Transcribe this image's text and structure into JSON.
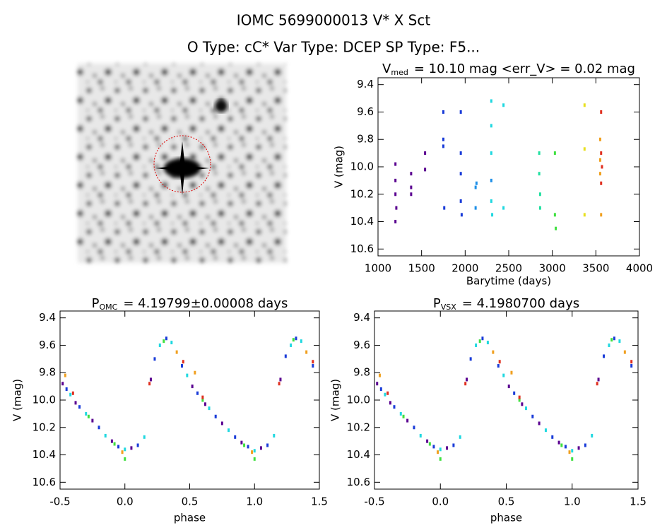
{
  "title": "IOMC 5699000013    V* X Sct",
  "subtitle": "O Type: cC*  Var Type: DCEP  SP Type: F5...",
  "chart_data": [
    {
      "type": "scatter",
      "title": {
        "main": "V",
        "sub": "med",
        "rest": "= 10.10 mag <err_V> = 0.02 mag"
      },
      "xlabel": "Barytime (days)",
      "ylabel": "V (mag)",
      "xlim": [
        1000,
        4000
      ],
      "ylim": [
        10.65,
        9.35
      ],
      "xticks": [
        1000,
        1500,
        2000,
        2500,
        3000,
        3500,
        4000
      ],
      "yticks": [
        9.4,
        9.6,
        9.8,
        {
          "value": 10,
          "label": "10.0"
        },
        10.2,
        10.4,
        10.6
      ],
      "series": [
        {
          "color": "#5a0090",
          "x": [
            1200,
            1200,
            1200,
            1210,
            1200,
            1380,
            1380,
            1380,
            1540,
            1540
          ],
          "values": [
            9.98,
            10.1,
            10.2,
            10.3,
            10.4,
            10.05,
            10.15,
            10.2,
            9.9,
            10.02
          ]
        },
        {
          "color": "#1a3cd8",
          "x": [
            1750,
            1750,
            1750,
            1760,
            1950,
            1950,
            1950,
            1950,
            1960
          ],
          "values": [
            9.6,
            9.8,
            9.85,
            10.3,
            9.6,
            9.9,
            10.05,
            10.25,
            10.35
          ]
        },
        {
          "color": "#1e90e8",
          "x": [
            2120,
            2120,
            2130,
            2300
          ],
          "values": [
            10.15,
            10.3,
            10.12,
            10.1
          ]
        },
        {
          "color": "#20d8e0",
          "x": [
            2300,
            2300,
            2300,
            2300,
            2310,
            2440,
            2440
          ],
          "values": [
            9.52,
            9.7,
            9.9,
            10.25,
            10.35,
            9.55,
            10.3
          ]
        },
        {
          "color": "#20e0a0",
          "x": [
            2850,
            2850,
            2860,
            2860
          ],
          "values": [
            9.9,
            10.05,
            10.2,
            10.3
          ]
        },
        {
          "color": "#40e040",
          "x": [
            3030,
            3030,
            3040
          ],
          "values": [
            9.9,
            10.35,
            10.45
          ]
        },
        {
          "color": "#e8e020",
          "x": [
            3370,
            3370,
            3370
          ],
          "values": [
            9.55,
            9.87,
            10.35
          ]
        },
        {
          "color": "#f0a020",
          "x": [
            3550,
            3550,
            3560,
            3550
          ],
          "values": [
            9.8,
            10.05,
            10.35,
            9.95
          ]
        },
        {
          "color": "#e03020",
          "x": [
            3560,
            3560,
            3560,
            3570
          ],
          "values": [
            9.6,
            9.9,
            10.12,
            10.0
          ]
        }
      ]
    },
    {
      "type": "scatter",
      "title": {
        "main": "P",
        "sub": "OMC",
        "rest": "= 4.19799±0.00008 days"
      },
      "xlabel": "phase",
      "ylabel": "V (mag)",
      "xlim": [
        -0.5,
        1.5
      ],
      "ylim": [
        10.65,
        9.35
      ],
      "xticks": [
        -0.5,
        {
          "value": 0,
          "label": "0.0"
        },
        0.5,
        {
          "value": 1,
          "label": "1.0"
        },
        1.5
      ],
      "yticks": [
        9.4,
        9.6,
        9.8,
        {
          "value": 10,
          "label": "10.0"
        },
        10.2,
        10.4,
        10.6
      ],
      "series": [
        {
          "color": "#5a0090",
          "x": [
            -0.48,
            -0.38,
            -0.25,
            -0.1,
            0.05,
            0.2,
            0.52,
            0.62,
            0.75,
            0.9,
            1.05,
            1.2
          ],
          "values": [
            9.88,
            10.02,
            10.15,
            10.3,
            10.35,
            9.85,
            9.9,
            10.03,
            10.17,
            10.31,
            10.35,
            9.85
          ]
        },
        {
          "color": "#1a3cd8",
          "x": [
            -0.45,
            -0.35,
            -0.2,
            -0.05,
            0.1,
            0.23,
            0.32,
            0.44,
            0.56,
            0.7,
            0.85,
            0.95,
            1.1,
            1.24,
            1.32,
            1.45
          ],
          "values": [
            9.92,
            10.05,
            10.2,
            10.34,
            10.33,
            9.7,
            9.55,
            9.75,
            9.95,
            10.12,
            10.27,
            10.34,
            10.33,
            9.68,
            9.55,
            9.75
          ]
        },
        {
          "color": "#20d8e0",
          "x": [
            -0.42,
            -0.3,
            -0.15,
            0.0,
            0.15,
            0.27,
            0.36,
            0.48,
            0.65,
            0.8,
            1.0,
            1.15,
            1.28,
            1.36
          ],
          "values": [
            9.96,
            10.1,
            10.26,
            10.36,
            10.27,
            9.6,
            9.58,
            9.82,
            10.06,
            10.22,
            10.37,
            10.26,
            9.6,
            9.57
          ]
        },
        {
          "color": "#40e040",
          "x": [
            -0.28,
            -0.08,
            0.0,
            0.3,
            0.6,
            0.92,
            1.0,
            1.3
          ],
          "values": [
            10.12,
            10.32,
            10.43,
            9.57,
            10.0,
            10.33,
            10.43,
            9.56
          ]
        },
        {
          "color": "#f0a020",
          "x": [
            -0.46,
            -0.02,
            0.4,
            0.54,
            0.98,
            1.4
          ],
          "values": [
            9.82,
            10.38,
            9.65,
            9.8,
            10.38,
            9.65
          ]
        },
        {
          "color": "#e03020",
          "x": [
            -0.4,
            0.19,
            0.45,
            0.6,
            1.19,
            1.45
          ],
          "values": [
            9.95,
            9.88,
            9.72,
            9.98,
            9.88,
            9.72
          ]
        }
      ]
    },
    {
      "type": "scatter",
      "title": {
        "main": "P",
        "sub": "VSX",
        "rest": "= 4.1980700 days"
      },
      "xlabel": "phase",
      "ylabel": "V (mag)",
      "xlim": [
        -0.5,
        1.5
      ],
      "ylim": [
        10.65,
        9.35
      ],
      "xticks": [
        -0.5,
        {
          "value": 0,
          "label": "0.0"
        },
        0.5,
        {
          "value": 1,
          "label": "1.0"
        },
        1.5
      ],
      "yticks": [
        9.4,
        9.6,
        9.8,
        {
          "value": 10,
          "label": "10.0"
        },
        10.2,
        10.4,
        10.6
      ],
      "series": [
        {
          "color": "#5a0090",
          "x": [
            -0.48,
            -0.38,
            -0.25,
            -0.1,
            0.05,
            0.2,
            0.52,
            0.62,
            0.75,
            0.9,
            1.05,
            1.2
          ],
          "values": [
            9.88,
            10.02,
            10.15,
            10.3,
            10.35,
            9.85,
            9.9,
            10.03,
            10.17,
            10.31,
            10.35,
            9.85
          ]
        },
        {
          "color": "#1a3cd8",
          "x": [
            -0.45,
            -0.35,
            -0.2,
            -0.05,
            0.1,
            0.23,
            0.32,
            0.44,
            0.56,
            0.7,
            0.85,
            0.95,
            1.1,
            1.24,
            1.32,
            1.45
          ],
          "values": [
            9.92,
            10.05,
            10.2,
            10.34,
            10.33,
            9.7,
            9.55,
            9.75,
            9.95,
            10.12,
            10.27,
            10.34,
            10.33,
            9.68,
            9.55,
            9.75
          ]
        },
        {
          "color": "#20d8e0",
          "x": [
            -0.42,
            -0.3,
            -0.15,
            0.0,
            0.15,
            0.27,
            0.36,
            0.48,
            0.65,
            0.8,
            1.0,
            1.15,
            1.28,
            1.36
          ],
          "values": [
            9.96,
            10.1,
            10.26,
            10.36,
            10.27,
            9.6,
            9.58,
            9.82,
            10.06,
            10.22,
            10.37,
            10.26,
            9.6,
            9.57
          ]
        },
        {
          "color": "#40e040",
          "x": [
            -0.28,
            -0.08,
            0.0,
            0.3,
            0.6,
            0.92,
            1.0,
            1.3
          ],
          "values": [
            10.12,
            10.32,
            10.43,
            9.57,
            10.0,
            10.33,
            10.43,
            9.56
          ]
        },
        {
          "color": "#f0a020",
          "x": [
            -0.46,
            -0.02,
            0.4,
            0.54,
            0.98,
            1.4
          ],
          "values": [
            9.82,
            10.38,
            9.65,
            9.8,
            10.38,
            9.65
          ]
        },
        {
          "color": "#e03020",
          "x": [
            -0.4,
            0.19,
            0.45,
            0.6,
            1.19,
            1.45
          ],
          "values": [
            9.95,
            9.88,
            9.72,
            9.98,
            9.88,
            9.72
          ]
        }
      ]
    }
  ]
}
